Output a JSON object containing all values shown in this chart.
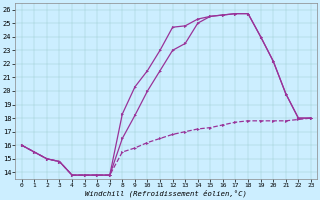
{
  "bg_color": "#cceeff",
  "line_color": "#993399",
  "xlim": [
    -0.5,
    23.5
  ],
  "ylim": [
    13.5,
    26.5
  ],
  "xticks": [
    0,
    1,
    2,
    3,
    4,
    5,
    6,
    7,
    8,
    9,
    10,
    11,
    12,
    13,
    14,
    15,
    16,
    17,
    18,
    19,
    20,
    21,
    22,
    23
  ],
  "yticks": [
    14,
    15,
    16,
    17,
    18,
    19,
    20,
    21,
    22,
    23,
    24,
    25,
    26
  ],
  "xlabel": "Windchill (Refroidissement éolien,°C)",
  "line1_x": [
    0,
    1,
    2,
    3,
    4,
    5,
    6,
    7,
    8,
    9,
    10,
    11,
    12,
    13,
    14,
    15,
    16,
    17,
    18,
    19,
    20,
    21,
    22,
    23
  ],
  "line1_y": [
    16,
    15.5,
    15.0,
    14.8,
    13.8,
    13.8,
    13.8,
    13.8,
    18.3,
    20.3,
    21.5,
    23.0,
    24.7,
    24.8,
    25.3,
    25.5,
    25.6,
    25.7,
    25.7,
    24.0,
    22.2,
    19.8,
    18.0,
    18.0
  ],
  "line2_x": [
    0,
    1,
    2,
    3,
    4,
    5,
    6,
    7,
    8,
    9,
    10,
    11,
    12,
    13,
    14,
    15,
    16,
    17,
    18,
    19,
    20,
    21,
    22,
    23
  ],
  "line2_y": [
    16,
    15.5,
    15.0,
    14.8,
    13.8,
    13.8,
    13.8,
    13.8,
    16.5,
    18.2,
    20.0,
    21.5,
    23.0,
    23.5,
    25.0,
    25.5,
    25.6,
    25.7,
    25.7,
    24.0,
    22.2,
    19.8,
    18.0,
    18.0
  ],
  "line3_x": [
    0,
    1,
    2,
    3,
    4,
    5,
    6,
    7,
    8,
    9,
    10,
    11,
    12,
    13,
    14,
    15,
    16,
    17,
    18,
    19,
    20,
    21,
    22,
    23
  ],
  "line3_y": [
    16.0,
    15.5,
    15.0,
    14.8,
    13.8,
    13.8,
    13.8,
    13.8,
    15.5,
    15.8,
    16.2,
    16.5,
    16.8,
    17.0,
    17.2,
    17.3,
    17.5,
    17.7,
    17.8,
    17.8,
    17.8,
    17.8,
    17.9,
    18.0
  ]
}
